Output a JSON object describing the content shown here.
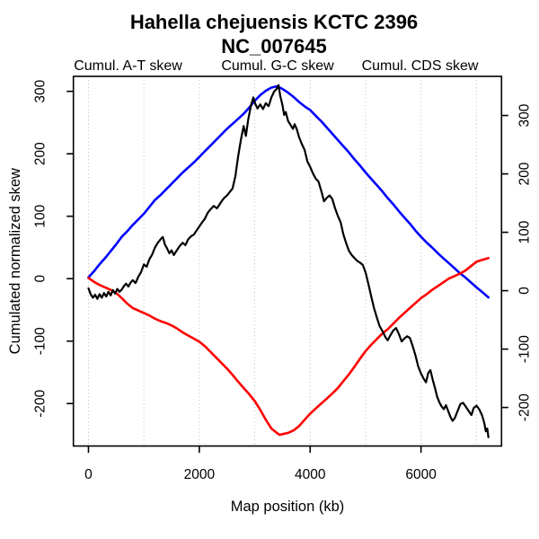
{
  "chart_data": {
    "type": "line",
    "title": "Hahella chejuensis KCTC 2396",
    "subtitle": "NC_007645",
    "xlabel": "Map position (kb)",
    "ylabel": "Cumulated normalized skew",
    "grid": "vertical dotted gridlines every 1000 kb",
    "grid_color": "#c8c8c8",
    "legend_position": "top",
    "x_axis": {
      "lim": [
        -272,
        7453
      ],
      "ticks": [
        0,
        2000,
        4000,
        6000
      ],
      "tick_labels": [
        "0",
        "2000",
        "4000",
        "6000"
      ],
      "gridlines_kb": [
        0,
        1000,
        2000,
        3000,
        4000,
        5000,
        6000,
        7000
      ]
    },
    "y_axis_left": {
      "lim": [
        -268,
        324
      ],
      "ticks": [
        -200,
        -100,
        0,
        100,
        200,
        300
      ],
      "tick_labels": [
        "-200",
        "-100",
        "0",
        "100",
        "200",
        "300"
      ]
    },
    "y_axis_right": {
      "lim": [
        -266,
        367
      ],
      "ticks": [
        -200,
        -100,
        0,
        100,
        200,
        300
      ],
      "tick_labels": [
        "-200",
        "-100",
        "0",
        "100",
        "200",
        "300"
      ]
    },
    "series": [
      {
        "name": "Cumul. G-C skew",
        "color": "#0000ff",
        "y_axis": "left",
        "points": [
          [
            0,
            2
          ],
          [
            100,
            12
          ],
          [
            200,
            23
          ],
          [
            300,
            33
          ],
          [
            400,
            44
          ],
          [
            500,
            55
          ],
          [
            600,
            67
          ],
          [
            700,
            76
          ],
          [
            800,
            86
          ],
          [
            900,
            95
          ],
          [
            1000,
            104
          ],
          [
            1100,
            115
          ],
          [
            1200,
            126
          ],
          [
            1300,
            134
          ],
          [
            1400,
            143
          ],
          [
            1500,
            152
          ],
          [
            1600,
            161
          ],
          [
            1700,
            170
          ],
          [
            1800,
            178
          ],
          [
            1900,
            186
          ],
          [
            2000,
            195
          ],
          [
            2100,
            204
          ],
          [
            2200,
            213
          ],
          [
            2300,
            222
          ],
          [
            2400,
            231
          ],
          [
            2500,
            240
          ],
          [
            2600,
            248
          ],
          [
            2700,
            256
          ],
          [
            2800,
            264
          ],
          [
            2900,
            274
          ],
          [
            3000,
            285
          ],
          [
            3100,
            294
          ],
          [
            3200,
            301
          ],
          [
            3300,
            306
          ],
          [
            3400,
            308
          ],
          [
            3500,
            304
          ],
          [
            3600,
            298
          ],
          [
            3700,
            291
          ],
          [
            3800,
            283
          ],
          [
            3900,
            276
          ],
          [
            4000,
            270
          ],
          [
            4100,
            261
          ],
          [
            4200,
            252
          ],
          [
            4300,
            242
          ],
          [
            4400,
            232
          ],
          [
            4500,
            222
          ],
          [
            4600,
            212
          ],
          [
            4700,
            202
          ],
          [
            4800,
            191
          ],
          [
            4900,
            181
          ],
          [
            5000,
            170
          ],
          [
            5100,
            160
          ],
          [
            5200,
            150
          ],
          [
            5300,
            140
          ],
          [
            5400,
            129
          ],
          [
            5500,
            119
          ],
          [
            5600,
            108
          ],
          [
            5700,
            98
          ],
          [
            5800,
            88
          ],
          [
            5900,
            77
          ],
          [
            6000,
            67
          ],
          [
            6100,
            58
          ],
          [
            6200,
            50
          ],
          [
            6300,
            41
          ],
          [
            6400,
            33
          ],
          [
            6500,
            25
          ],
          [
            6600,
            17
          ],
          [
            6700,
            9
          ],
          [
            6800,
            2
          ],
          [
            6900,
            -6
          ],
          [
            7000,
            -14
          ],
          [
            7100,
            -21
          ],
          [
            7216,
            -30
          ]
        ]
      },
      {
        "name": "Cumul. A-T skew",
        "color": "#ff0000",
        "y_axis": "left",
        "points": [
          [
            0,
            1
          ],
          [
            100,
            -5
          ],
          [
            200,
            -10
          ],
          [
            300,
            -14
          ],
          [
            400,
            -18
          ],
          [
            500,
            -23
          ],
          [
            600,
            -31
          ],
          [
            700,
            -40
          ],
          [
            800,
            -47
          ],
          [
            900,
            -51
          ],
          [
            1000,
            -55
          ],
          [
            1100,
            -59
          ],
          [
            1200,
            -64
          ],
          [
            1300,
            -68
          ],
          [
            1400,
            -71
          ],
          [
            1500,
            -75
          ],
          [
            1600,
            -80
          ],
          [
            1700,
            -86
          ],
          [
            1800,
            -91
          ],
          [
            1900,
            -96
          ],
          [
            2000,
            -101
          ],
          [
            2100,
            -108
          ],
          [
            2200,
            -117
          ],
          [
            2300,
            -126
          ],
          [
            2400,
            -135
          ],
          [
            2500,
            -144
          ],
          [
            2600,
            -154
          ],
          [
            2700,
            -165
          ],
          [
            2800,
            -175
          ],
          [
            2900,
            -185
          ],
          [
            3000,
            -196
          ],
          [
            3100,
            -210
          ],
          [
            3200,
            -226
          ],
          [
            3300,
            -240
          ],
          [
            3400,
            -247
          ],
          [
            3450,
            -250
          ],
          [
            3500,
            -249
          ],
          [
            3600,
            -247
          ],
          [
            3700,
            -243
          ],
          [
            3800,
            -236
          ],
          [
            3900,
            -226
          ],
          [
            4000,
            -216
          ],
          [
            4100,
            -208
          ],
          [
            4200,
            -200
          ],
          [
            4300,
            -192
          ],
          [
            4400,
            -184
          ],
          [
            4500,
            -175
          ],
          [
            4600,
            -164
          ],
          [
            4700,
            -153
          ],
          [
            4800,
            -141
          ],
          [
            4900,
            -128
          ],
          [
            5000,
            -116
          ],
          [
            5100,
            -106
          ],
          [
            5200,
            -97
          ],
          [
            5300,
            -88
          ],
          [
            5400,
            -81
          ],
          [
            5500,
            -72
          ],
          [
            5600,
            -63
          ],
          [
            5700,
            -55
          ],
          [
            5800,
            -47
          ],
          [
            5900,
            -39
          ],
          [
            6000,
            -31
          ],
          [
            6100,
            -25
          ],
          [
            6200,
            -18
          ],
          [
            6300,
            -12
          ],
          [
            6400,
            -6
          ],
          [
            6500,
            0
          ],
          [
            6600,
            4
          ],
          [
            6700,
            8
          ],
          [
            6800,
            13
          ],
          [
            6900,
            20
          ],
          [
            7000,
            27
          ],
          [
            7100,
            30
          ],
          [
            7216,
            33
          ]
        ]
      },
      {
        "name": "Cumul. CDS skew",
        "color": "#000000",
        "y_axis": "right",
        "points": [
          [
            0,
            4
          ],
          [
            40,
            -6
          ],
          [
            80,
            -12
          ],
          [
            120,
            -7
          ],
          [
            160,
            -14
          ],
          [
            200,
            -6
          ],
          [
            240,
            -12
          ],
          [
            280,
            -4
          ],
          [
            320,
            -10
          ],
          [
            360,
            -2
          ],
          [
            400,
            -8
          ],
          [
            440,
            1
          ],
          [
            480,
            -5
          ],
          [
            520,
            3
          ],
          [
            560,
            -2
          ],
          [
            600,
            2
          ],
          [
            640,
            8
          ],
          [
            680,
            12
          ],
          [
            720,
            7
          ],
          [
            760,
            14
          ],
          [
            800,
            18
          ],
          [
            850,
            13
          ],
          [
            900,
            24
          ],
          [
            950,
            32
          ],
          [
            1000,
            45
          ],
          [
            1050,
            41
          ],
          [
            1100,
            54
          ],
          [
            1150,
            62
          ],
          [
            1200,
            74
          ],
          [
            1250,
            82
          ],
          [
            1300,
            88
          ],
          [
            1340,
            92
          ],
          [
            1380,
            79
          ],
          [
            1420,
            72
          ],
          [
            1460,
            64
          ],
          [
            1500,
            69
          ],
          [
            1540,
            61
          ],
          [
            1600,
            70
          ],
          [
            1650,
            77
          ],
          [
            1700,
            82
          ],
          [
            1750,
            78
          ],
          [
            1800,
            88
          ],
          [
            1850,
            93
          ],
          [
            1900,
            96
          ],
          [
            1950,
            103
          ],
          [
            2000,
            110
          ],
          [
            2050,
            117
          ],
          [
            2100,
            123
          ],
          [
            2150,
            133
          ],
          [
            2200,
            139
          ],
          [
            2260,
            145
          ],
          [
            2320,
            141
          ],
          [
            2380,
            150
          ],
          [
            2440,
            158
          ],
          [
            2500,
            163
          ],
          [
            2550,
            169
          ],
          [
            2600,
            175
          ],
          [
            2650,
            196
          ],
          [
            2700,
            230
          ],
          [
            2750,
            258
          ],
          [
            2800,
            282
          ],
          [
            2840,
            265
          ],
          [
            2880,
            292
          ],
          [
            2930,
            316
          ],
          [
            2975,
            331
          ],
          [
            3010,
            320
          ],
          [
            3050,
            312
          ],
          [
            3100,
            319
          ],
          [
            3150,
            311
          ],
          [
            3200,
            321
          ],
          [
            3250,
            316
          ],
          [
            3300,
            331
          ],
          [
            3350,
            341
          ],
          [
            3400,
            346
          ],
          [
            3430,
            352
          ],
          [
            3460,
            334
          ],
          [
            3500,
            318
          ],
          [
            3530,
            301
          ],
          [
            3560,
            306
          ],
          [
            3600,
            291
          ],
          [
            3650,
            283
          ],
          [
            3690,
            277
          ],
          [
            3720,
            285
          ],
          [
            3760,
            276
          ],
          [
            3800,
            263
          ],
          [
            3850,
            251
          ],
          [
            3900,
            241
          ],
          [
            3950,
            221
          ],
          [
            4000,
            212
          ],
          [
            4050,
            201
          ],
          [
            4100,
            192
          ],
          [
            4150,
            187
          ],
          [
            4200,
            171
          ],
          [
            4250,
            153
          ],
          [
            4300,
            159
          ],
          [
            4350,
            163
          ],
          [
            4400,
            157
          ],
          [
            4450,
            141
          ],
          [
            4500,
            128
          ],
          [
            4550,
            117
          ],
          [
            4600,
            96
          ],
          [
            4650,
            81
          ],
          [
            4700,
            68
          ],
          [
            4750,
            61
          ],
          [
            4800,
            56
          ],
          [
            4850,
            51
          ],
          [
            4900,
            48
          ],
          [
            4950,
            44
          ],
          [
            5000,
            31
          ],
          [
            5050,
            12
          ],
          [
            5100,
            -9
          ],
          [
            5150,
            -29
          ],
          [
            5200,
            -45
          ],
          [
            5250,
            -60
          ],
          [
            5320,
            -72
          ],
          [
            5360,
            -80
          ],
          [
            5400,
            -85
          ],
          [
            5450,
            -76
          ],
          [
            5500,
            -68
          ],
          [
            5550,
            -64
          ],
          [
            5600,
            -74
          ],
          [
            5650,
            -87
          ],
          [
            5700,
            -82
          ],
          [
            5750,
            -78
          ],
          [
            5800,
            -81
          ],
          [
            5850,
            -95
          ],
          [
            5900,
            -111
          ],
          [
            5950,
            -130
          ],
          [
            6000,
            -142
          ],
          [
            6050,
            -151
          ],
          [
            6090,
            -157
          ],
          [
            6130,
            -141
          ],
          [
            6170,
            -136
          ],
          [
            6210,
            -152
          ],
          [
            6250,
            -166
          ],
          [
            6290,
            -181
          ],
          [
            6330,
            -191
          ],
          [
            6370,
            -198
          ],
          [
            6410,
            -203
          ],
          [
            6450,
            -196
          ],
          [
            6490,
            -206
          ],
          [
            6530,
            -216
          ],
          [
            6570,
            -223
          ],
          [
            6610,
            -218
          ],
          [
            6660,
            -206
          ],
          [
            6710,
            -194
          ],
          [
            6760,
            -192
          ],
          [
            6810,
            -199
          ],
          [
            6860,
            -206
          ],
          [
            6910,
            -213
          ],
          [
            6950,
            -201
          ],
          [
            7000,
            -197
          ],
          [
            7050,
            -203
          ],
          [
            7100,
            -213
          ],
          [
            7140,
            -226
          ],
          [
            7170,
            -241
          ],
          [
            7195,
            -236
          ],
          [
            7216,
            -251
          ]
        ]
      }
    ]
  }
}
